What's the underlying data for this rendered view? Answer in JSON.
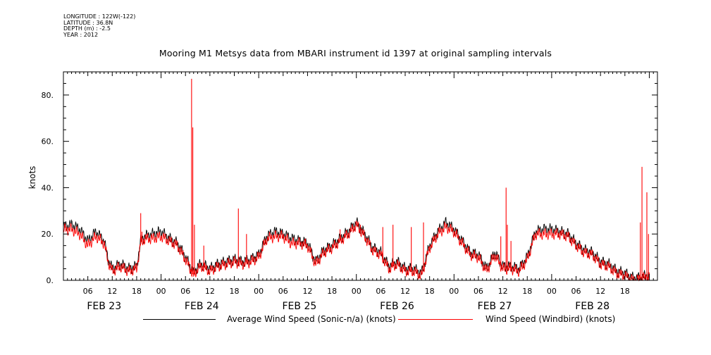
{
  "header": {
    "longitude": "LONGITUDE : 122W(-122)",
    "latitude": "LATITUDE : 36.8N",
    "depth": "DEPTH (m) : -2.5",
    "year": "YEAR : 2012"
  },
  "colors": {
    "avg_series": "#000000",
    "windbird_series": "#ff0000",
    "axis": "#000000",
    "background": "#ffffff"
  },
  "chart_data": {
    "type": "line",
    "title": "Mooring M1 Metsys data from MBARI instrument id 1397 at original sampling intervals",
    "ylabel": "knots",
    "xlabel": "",
    "ylim": [
      0,
      90
    ],
    "yticks": [
      0,
      20,
      40,
      60,
      80
    ],
    "ytick_labels": [
      "0.",
      "20.",
      "40.",
      "60.",
      "80."
    ],
    "xlim_hours": [
      0,
      146
    ],
    "x_tick_labels": [
      {
        "h": 6,
        "label": "06"
      },
      {
        "h": 12,
        "label": "12"
      },
      {
        "h": 18,
        "label": "18"
      },
      {
        "h": 24,
        "label": "00"
      },
      {
        "h": 30,
        "label": "06"
      },
      {
        "h": 36,
        "label": "12"
      },
      {
        "h": 42,
        "label": "18"
      },
      {
        "h": 48,
        "label": "00"
      },
      {
        "h": 54,
        "label": "06"
      },
      {
        "h": 60,
        "label": "12"
      },
      {
        "h": 66,
        "label": "18"
      },
      {
        "h": 72,
        "label": "00"
      },
      {
        "h": 78,
        "label": "06"
      },
      {
        "h": 84,
        "label": "12"
      },
      {
        "h": 90,
        "label": "18"
      },
      {
        "h": 96,
        "label": "00"
      },
      {
        "h": 102,
        "label": "06"
      },
      {
        "h": 108,
        "label": "12"
      },
      {
        "h": 114,
        "label": "18"
      },
      {
        "h": 120,
        "label": "00"
      },
      {
        "h": 126,
        "label": "06"
      },
      {
        "h": 132,
        "label": "12"
      },
      {
        "h": 138,
        "label": "18"
      }
    ],
    "date_labels": [
      {
        "h": 10,
        "label": "FEB 23"
      },
      {
        "h": 34,
        "label": "FEB 24"
      },
      {
        "h": 58,
        "label": "FEB 25"
      },
      {
        "h": 82,
        "label": "FEB 26"
      },
      {
        "h": 106,
        "label": "FEB 27"
      },
      {
        "h": 130,
        "label": "FEB 28"
      }
    ],
    "series": [
      {
        "name": "Average Wind Speed (Sonic-n/a) (knots)",
        "color": "#000000",
        "x_hours": [
          0,
          2,
          4,
          6,
          8,
          10,
          11,
          12,
          14,
          16,
          18,
          19,
          20,
          22,
          24,
          26,
          28,
          30,
          32,
          33,
          34,
          36,
          38,
          40,
          42,
          44,
          46,
          48,
          50,
          52,
          54,
          56,
          58,
          60,
          62,
          64,
          66,
          68,
          70,
          72,
          74,
          76,
          78,
          80,
          82,
          84,
          86,
          88,
          90,
          92,
          94,
          96,
          98,
          100,
          102,
          104,
          106,
          108,
          110,
          112,
          114,
          116,
          118,
          120,
          122,
          124,
          126,
          128,
          130,
          132,
          134,
          136,
          138,
          140,
          141,
          142,
          143,
          144
        ],
        "y": [
          23,
          24,
          22,
          17,
          21,
          17,
          9,
          5,
          7,
          5,
          6,
          17,
          19,
          20,
          21,
          18,
          16,
          10,
          3,
          6,
          7,
          5,
          7,
          8,
          9,
          8,
          9,
          11,
          19,
          21,
          20,
          18,
          17,
          16,
          8,
          13,
          15,
          18,
          21,
          25,
          20,
          14,
          12,
          6,
          8,
          5,
          5,
          3,
          15,
          21,
          25,
          22,
          17,
          12,
          11,
          5,
          12,
          6,
          6,
          5,
          10,
          21,
          22,
          22,
          21,
          20,
          16,
          13,
          12,
          8,
          7,
          4,
          3,
          1,
          1,
          1,
          2,
          2
        ]
      },
      {
        "name": "Wind Speed (Windbird) (knots)",
        "color": "#ff0000",
        "x_hours": [
          0,
          2,
          4,
          6,
          8,
          10,
          11,
          12,
          14,
          16,
          18,
          19,
          20,
          22,
          24,
          26,
          28,
          30,
          32,
          33,
          34,
          36,
          38,
          40,
          42,
          44,
          46,
          48,
          50,
          52,
          54,
          56,
          58,
          60,
          62,
          64,
          66,
          68,
          70,
          72,
          74,
          76,
          78,
          80,
          82,
          84,
          86,
          88,
          90,
          92,
          94,
          96,
          98,
          100,
          102,
          104,
          106,
          108,
          110,
          112,
          114,
          116,
          118,
          120,
          122,
          124,
          126,
          128,
          130,
          132,
          134,
          136,
          138,
          140,
          141,
          142,
          143,
          144
        ],
        "y": [
          22,
          22,
          20,
          15,
          19,
          16,
          8,
          4,
          6,
          4,
          5,
          16,
          18,
          18,
          19,
          17,
          15,
          9,
          2,
          5,
          6,
          4,
          6,
          7,
          8,
          7,
          8,
          10,
          18,
          19,
          19,
          16,
          16,
          15,
          7,
          12,
          14,
          17,
          20,
          24,
          19,
          13,
          11,
          5,
          7,
          4,
          4,
          2,
          14,
          20,
          23,
          21,
          16,
          11,
          10,
          4,
          11,
          5,
          5,
          4,
          9,
          20,
          20,
          20,
          20,
          19,
          15,
          12,
          11,
          7,
          6,
          3,
          2,
          0,
          0,
          1,
          1,
          1
        ],
        "spikes": [
          {
            "h": 19.0,
            "y": 29
          },
          {
            "h": 19.3,
            "y": 21
          },
          {
            "h": 31.5,
            "y": 87
          },
          {
            "h": 31.8,
            "y": 66
          },
          {
            "h": 32.2,
            "y": 24
          },
          {
            "h": 34.5,
            "y": 15
          },
          {
            "h": 43.0,
            "y": 31
          },
          {
            "h": 45.0,
            "y": 20
          },
          {
            "h": 59.5,
            "y": 18
          },
          {
            "h": 68.0,
            "y": 22
          },
          {
            "h": 73.0,
            "y": 24
          },
          {
            "h": 78.5,
            "y": 23
          },
          {
            "h": 81.0,
            "y": 24
          },
          {
            "h": 85.5,
            "y": 23
          },
          {
            "h": 88.5,
            "y": 25
          },
          {
            "h": 107.5,
            "y": 19
          },
          {
            "h": 108.8,
            "y": 40
          },
          {
            "h": 109.1,
            "y": 24
          },
          {
            "h": 110.0,
            "y": 17
          },
          {
            "h": 141.8,
            "y": 25
          },
          {
            "h": 142.2,
            "y": 49
          },
          {
            "h": 143.4,
            "y": 38
          },
          {
            "h": 143.8,
            "y": 20
          }
        ]
      }
    ],
    "legend": [
      "Average Wind Speed (Sonic-n/a) (knots)",
      "Wind Speed (Windbird) (knots)"
    ],
    "legend_position": "bottom",
    "grid": false
  }
}
